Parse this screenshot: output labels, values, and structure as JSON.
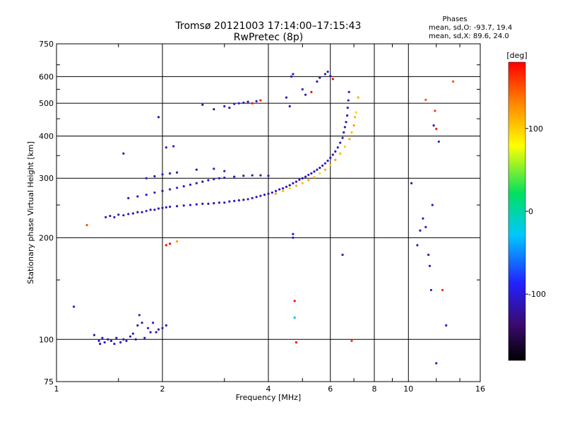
{
  "header": {
    "title": "Tromsø 20121003 17:14:00–17:15:43",
    "subtitle": "RwPretec (8p)"
  },
  "stats": {
    "title": "Phases",
    "line1": "mean, sd,O: -93.7, 19.4",
    "line2": "mean, sd,X:  89.6, 24.0"
  },
  "chart_data": {
    "type": "scatter",
    "xlabel": "Frequency [MHz]",
    "ylabel": "Stationary phase Virtual Height [km]",
    "xscale": "log",
    "yscale": "log",
    "xlim": [
      1,
      16
    ],
    "ylim": [
      75,
      750
    ],
    "x_ticks": [
      "1",
      "2",
      "4",
      "6",
      "8",
      "10",
      "16"
    ],
    "y_ticks": [
      "75",
      "100",
      "200",
      "300",
      "400",
      "500",
      "600",
      "750"
    ],
    "grid": true,
    "colorbar": {
      "label": "[deg]",
      "range": [
        -180,
        180
      ],
      "ticks": [
        "100",
        "0",
        "-100"
      ],
      "colors": [
        "#000000",
        "#3a0a6e",
        "#2222ff",
        "#00c8ff",
        "#00e060",
        "#ffff00",
        "#ff8800",
        "#ff0000"
      ]
    },
    "points": [
      [
        1.12,
        125,
        -100
      ],
      [
        1.22,
        218,
        150
      ],
      [
        1.28,
        103,
        -110
      ],
      [
        1.32,
        99,
        -95
      ],
      [
        1.33,
        97,
        -105
      ],
      [
        1.35,
        101,
        -100
      ],
      [
        1.37,
        98,
        -90
      ],
      [
        1.4,
        100,
        -110
      ],
      [
        1.43,
        99,
        -100
      ],
      [
        1.46,
        97,
        -95
      ],
      [
        1.48,
        101,
        -105
      ],
      [
        1.52,
        98,
        -100
      ],
      [
        1.55,
        100,
        -110
      ],
      [
        1.58,
        99,
        -95
      ],
      [
        1.62,
        102,
        -100
      ],
      [
        1.65,
        104,
        -90
      ],
      [
        1.68,
        100,
        -105
      ],
      [
        1.7,
        110,
        -100
      ],
      [
        1.72,
        118,
        -95
      ],
      [
        1.75,
        112,
        -110
      ],
      [
        1.78,
        101,
        -100
      ],
      [
        1.82,
        108,
        -95
      ],
      [
        1.85,
        105,
        -100
      ],
      [
        1.88,
        112,
        -90
      ],
      [
        1.92,
        105,
        -105
      ],
      [
        1.95,
        107,
        -100
      ],
      [
        2.0,
        108,
        -110
      ],
      [
        2.05,
        110,
        -100
      ],
      [
        1.38,
        230,
        -100
      ],
      [
        1.42,
        232,
        -105
      ],
      [
        1.46,
        230,
        -95
      ],
      [
        1.5,
        234,
        -110
      ],
      [
        1.55,
        233,
        -100
      ],
      [
        1.6,
        235,
        -95
      ],
      [
        1.65,
        236,
        -100
      ],
      [
        1.7,
        238,
        -105
      ],
      [
        1.75,
        238,
        -100
      ],
      [
        1.8,
        240,
        -95
      ],
      [
        1.85,
        242,
        -110
      ],
      [
        1.9,
        242,
        -100
      ],
      [
        1.95,
        244,
        -100
      ],
      [
        2.0,
        245,
        -105
      ],
      [
        2.05,
        246,
        -95
      ],
      [
        2.1,
        247,
        -100
      ],
      [
        2.2,
        248,
        -110
      ],
      [
        2.3,
        249,
        -100
      ],
      [
        2.4,
        250,
        -95
      ],
      [
        2.5,
        251,
        -100
      ],
      [
        2.6,
        252,
        -105
      ],
      [
        2.7,
        252,
        -100
      ],
      [
        2.8,
        253,
        -110
      ],
      [
        2.9,
        254,
        -100
      ],
      [
        3.0,
        254,
        -95
      ],
      [
        3.1,
        256,
        -100
      ],
      [
        3.2,
        257,
        -105
      ],
      [
        3.3,
        258,
        -100
      ],
      [
        3.4,
        259,
        -110
      ],
      [
        3.5,
        260,
        -100
      ],
      [
        3.6,
        262,
        -95
      ],
      [
        3.7,
        264,
        -100
      ],
      [
        3.8,
        266,
        -105
      ],
      [
        3.9,
        268,
        -100
      ],
      [
        4.0,
        270,
        -110
      ],
      [
        4.1,
        272,
        -100
      ],
      [
        4.2,
        275,
        -95
      ],
      [
        4.3,
        278,
        -100
      ],
      [
        4.4,
        280,
        -105
      ],
      [
        4.5,
        283,
        -100
      ],
      [
        4.6,
        286,
        -110
      ],
      [
        4.7,
        290,
        -100
      ],
      [
        4.8,
        293,
        -95
      ],
      [
        4.9,
        297,
        -100
      ],
      [
        5.0,
        300,
        -105
      ],
      [
        5.1,
        303,
        -100
      ],
      [
        5.2,
        307,
        -95
      ],
      [
        5.3,
        310,
        -100
      ],
      [
        5.4,
        314,
        -105
      ],
      [
        5.5,
        318,
        -100
      ],
      [
        5.6,
        322,
        -110
      ],
      [
        5.7,
        327,
        -100
      ],
      [
        5.8,
        332,
        -95
      ],
      [
        5.9,
        338,
        -100
      ],
      [
        6.0,
        345,
        -105
      ],
      [
        6.1,
        352,
        -100
      ],
      [
        6.2,
        360,
        -95
      ],
      [
        6.3,
        370,
        -100
      ],
      [
        6.4,
        382,
        -105
      ],
      [
        6.5,
        395,
        -100
      ],
      [
        6.55,
        410,
        -110
      ],
      [
        6.6,
        425,
        -100
      ],
      [
        6.65,
        440,
        -95
      ],
      [
        6.7,
        460,
        -100
      ],
      [
        6.72,
        485,
        -105
      ],
      [
        6.75,
        510,
        -100
      ],
      [
        6.78,
        540,
        -95
      ],
      [
        4.2,
        270,
        120
      ],
      [
        4.4,
        275,
        110
      ],
      [
        4.6,
        280,
        100
      ],
      [
        4.8,
        285,
        115
      ],
      [
        5.0,
        290,
        105
      ],
      [
        5.2,
        296,
        120
      ],
      [
        5.4,
        302,
        110
      ],
      [
        5.6,
        310,
        95
      ],
      [
        5.8,
        318,
        115
      ],
      [
        6.0,
        328,
        105
      ],
      [
        6.2,
        340,
        120
      ],
      [
        6.4,
        355,
        110
      ],
      [
        6.6,
        372,
        100
      ],
      [
        6.8,
        392,
        115
      ],
      [
        6.9,
        410,
        105
      ],
      [
        7.0,
        430,
        120
      ],
      [
        7.05,
        455,
        110
      ],
      [
        7.1,
        470,
        95
      ],
      [
        7.2,
        520,
        115
      ],
      [
        1.6,
        262,
        -100
      ],
      [
        1.7,
        265,
        -105
      ],
      [
        1.8,
        268,
        -95
      ],
      [
        1.9,
        272,
        -100
      ],
      [
        2.0,
        275,
        -110
      ],
      [
        2.1,
        278,
        -100
      ],
      [
        2.2,
        281,
        -95
      ],
      [
        2.3,
        284,
        -100
      ],
      [
        2.4,
        287,
        -105
      ],
      [
        2.5,
        290,
        -100
      ],
      [
        2.6,
        293,
        -110
      ],
      [
        2.7,
        296,
        -100
      ],
      [
        2.8,
        298,
        -95
      ],
      [
        2.9,
        300,
        -100
      ],
      [
        3.0,
        301,
        -105
      ],
      [
        3.2,
        303,
        -100
      ],
      [
        3.4,
        305,
        -110
      ],
      [
        3.6,
        306,
        -100
      ],
      [
        3.8,
        306,
        -95
      ],
      [
        4.0,
        305,
        -100
      ],
      [
        1.8,
        300,
        -100
      ],
      [
        1.9,
        304,
        -105
      ],
      [
        2.0,
        308,
        -95
      ],
      [
        2.1,
        310,
        -100
      ],
      [
        2.2,
        312,
        -110
      ],
      [
        2.5,
        318,
        -100
      ],
      [
        2.8,
        320,
        -95
      ],
      [
        3.0,
        315,
        -100
      ],
      [
        1.55,
        355,
        -100
      ],
      [
        1.95,
        455,
        -105
      ],
      [
        2.05,
        370,
        -100
      ],
      [
        2.15,
        373,
        -95
      ],
      [
        2.6,
        495,
        -100
      ],
      [
        2.8,
        480,
        -105
      ],
      [
        3.0,
        490,
        -100
      ],
      [
        3.1,
        485,
        -110
      ],
      [
        3.2,
        498,
        -100
      ],
      [
        3.3,
        500,
        -95
      ],
      [
        3.4,
        502,
        -100
      ],
      [
        3.5,
        505,
        -105
      ],
      [
        3.6,
        500,
        180
      ],
      [
        3.7,
        507,
        -100
      ],
      [
        3.8,
        510,
        180
      ],
      [
        4.5,
        520,
        -100
      ],
      [
        4.6,
        490,
        -105
      ],
      [
        4.65,
        600,
        -100
      ],
      [
        4.7,
        610,
        -95
      ],
      [
        5.0,
        550,
        -100
      ],
      [
        5.1,
        530,
        -105
      ],
      [
        5.3,
        540,
        180
      ],
      [
        5.5,
        580,
        -100
      ],
      [
        5.6,
        595,
        -105
      ],
      [
        5.8,
        610,
        -100
      ],
      [
        5.9,
        620,
        -95
      ],
      [
        6.0,
        602,
        -100
      ],
      [
        6.1,
        590,
        180
      ],
      [
        2.05,
        190,
        180
      ],
      [
        2.1,
        192,
        180
      ],
      [
        2.2,
        195,
        120
      ],
      [
        4.7,
        205,
        -100
      ],
      [
        4.7,
        200,
        -100
      ],
      [
        4.75,
        130,
        180
      ],
      [
        4.75,
        116,
        -30
      ],
      [
        4.8,
        98,
        180
      ],
      [
        6.5,
        178,
        -100
      ],
      [
        6.9,
        99,
        160
      ],
      [
        10.2,
        290,
        -100
      ],
      [
        10.6,
        190,
        -100
      ],
      [
        10.8,
        210,
        -100
      ],
      [
        11.0,
        228,
        -100
      ],
      [
        11.2,
        215,
        -95
      ],
      [
        11.4,
        178,
        -100
      ],
      [
        11.5,
        165,
        -100
      ],
      [
        11.6,
        140,
        -100
      ],
      [
        11.7,
        250,
        -105
      ],
      [
        11.8,
        430,
        -100
      ],
      [
        11.2,
        512,
        150
      ],
      [
        11.9,
        475,
        160
      ],
      [
        12.0,
        420,
        170
      ],
      [
        12.2,
        385,
        -100
      ],
      [
        12.5,
        140,
        170
      ],
      [
        12.8,
        110,
        -100
      ],
      [
        13.4,
        580,
        150
      ],
      [
        12.0,
        85,
        -100
      ]
    ]
  }
}
